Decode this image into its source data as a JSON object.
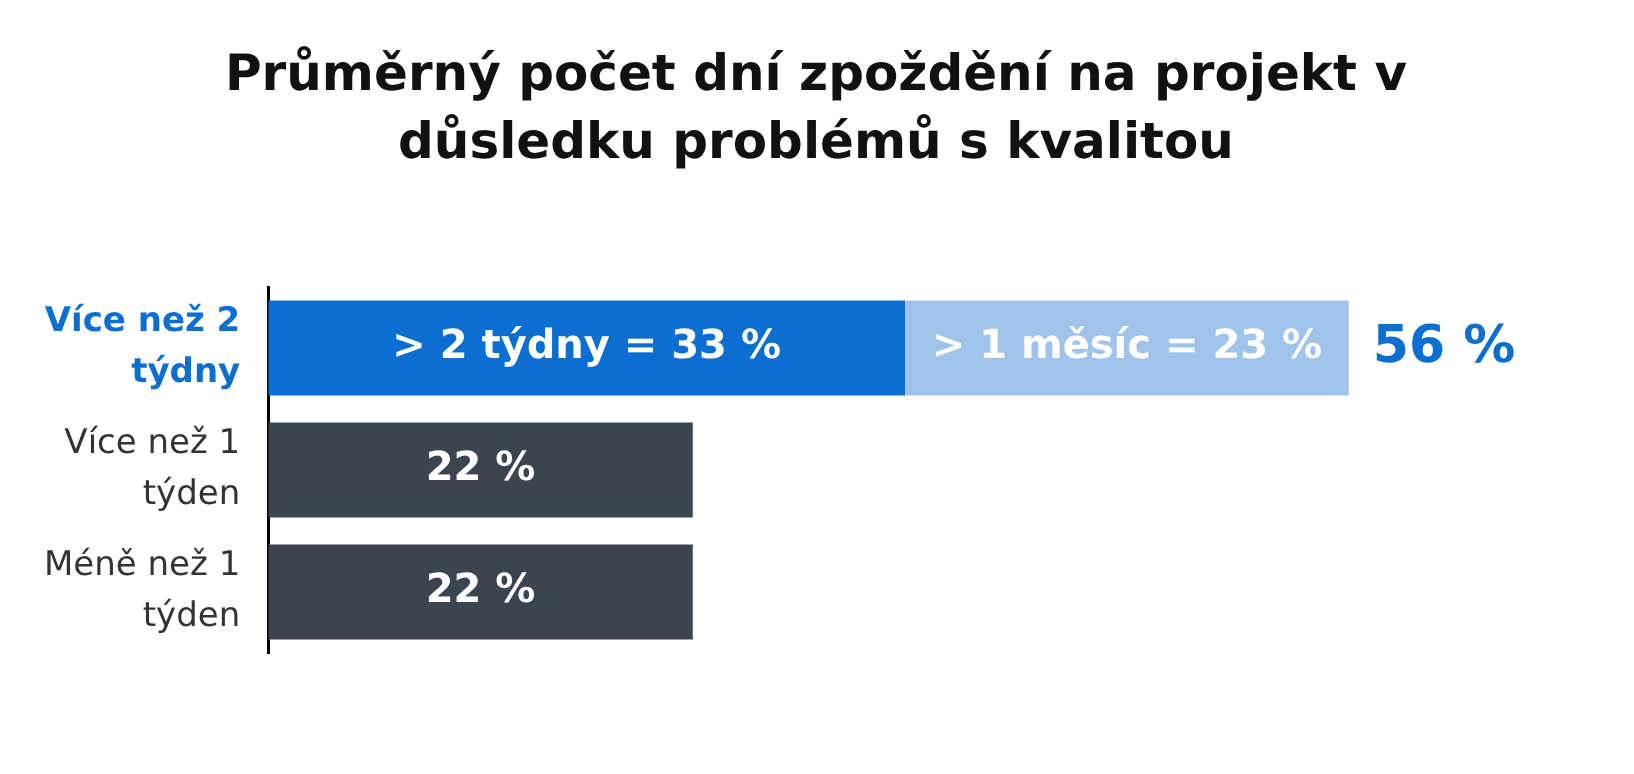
{
  "chart_data": {
    "type": "bar",
    "title": "Průměrný počet dní zpoždění na projekt v důsledku problémů s kvalitou",
    "orientation": "horizontal",
    "stacked": true,
    "categories": [
      "Více než 2 týdny",
      "Více než 1 týden",
      "Méně než 1 týden"
    ],
    "series": [
      {
        "colors": [
          "#0b6fd1",
          "#3b4550",
          "#3b4550"
        ],
        "values": [
          33,
          22,
          22
        ],
        "value_labels": [
          "> 2 týdny = 33 %",
          "22 %",
          "22 %"
        ]
      },
      {
        "color": "#9fc3ea",
        "values": [
          23,
          null,
          null
        ],
        "value_labels": [
          "> 1 měsíc = 23 %",
          null,
          null
        ]
      }
    ],
    "totals": [
      "56 %",
      null,
      null
    ],
    "tick_labels": "y",
    "grid": false,
    "legend": false
  }
}
